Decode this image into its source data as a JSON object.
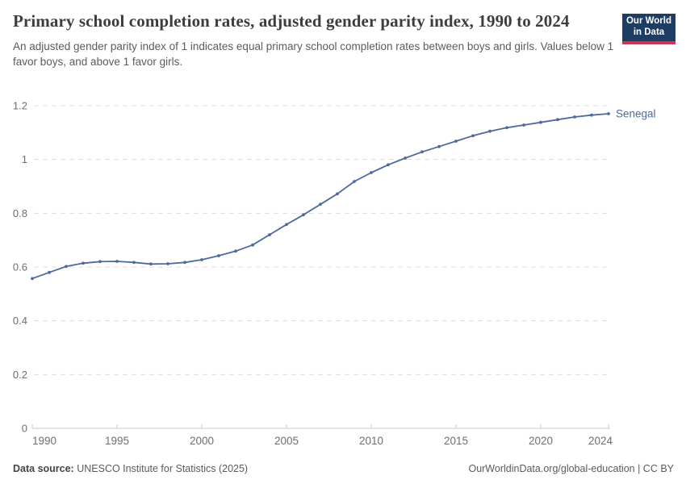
{
  "header": {
    "title": "Primary school completion rates, adjusted gender parity index, 1990 to 2024",
    "subtitle": "An adjusted gender parity index of 1 indicates equal primary school completion rates between boys and girls. Values below 1 favor boys, and above 1 favor girls.",
    "logo_line1": "Our World",
    "logo_line2": "in Data"
  },
  "chart_data": {
    "type": "line",
    "title": "Primary school completion rates, adjusted gender parity index, 1990 to 2024",
    "xlabel": "",
    "ylabel": "",
    "grid": "horizontal dashed",
    "legend": "end-of-line entity label",
    "xlim": [
      1990,
      2024
    ],
    "ylim": [
      0,
      1.2
    ],
    "yticks": [
      0,
      0.2,
      0.4,
      0.6,
      0.8,
      1,
      1.2
    ],
    "ytick_labels": [
      "0",
      "0.2",
      "0.4",
      "0.6",
      "0.8",
      "1",
      "1.2"
    ],
    "xticks": [
      1990,
      1995,
      2000,
      2005,
      2010,
      2015,
      2020,
      2024
    ],
    "xtick_labels": [
      "1990",
      "1995",
      "2000",
      "2005",
      "2010",
      "2015",
      "2020",
      "2024"
    ],
    "series": [
      {
        "name": "Senegal",
        "color": "#4C6A9C",
        "x": [
          1990,
          1991,
          1992,
          1993,
          1994,
          1995,
          1996,
          1997,
          1998,
          1999,
          2000,
          2001,
          2002,
          2003,
          2004,
          2005,
          2006,
          2007,
          2008,
          2009,
          2010,
          2011,
          2012,
          2013,
          2014,
          2015,
          2016,
          2017,
          2018,
          2019,
          2020,
          2021,
          2022,
          2023,
          2024
        ],
        "values": [
          0.557,
          0.58,
          0.602,
          0.614,
          0.62,
          0.621,
          0.617,
          0.611,
          0.612,
          0.617,
          0.627,
          0.642,
          0.659,
          0.682,
          0.72,
          0.758,
          0.794,
          0.833,
          0.872,
          0.918,
          0.951,
          0.98,
          1.005,
          1.028,
          1.048,
          1.068,
          1.088,
          1.105,
          1.118,
          1.128,
          1.138,
          1.148,
          1.158,
          1.165,
          1.17
        ]
      }
    ]
  },
  "footer": {
    "source_label": "Data source:",
    "source_value": "UNESCO Institute for Statistics (2025)",
    "url_license": "OurWorldinData.org/global-education | CC BY"
  },
  "colors": {
    "line": "#4C6A9C",
    "grid": "#dcdcdc",
    "axis": "#c8c8c8",
    "tick_text": "#6e6e6e",
    "title_text": "#3d3d3d",
    "subtitle_text": "#5b5b5b",
    "logo_bg": "#1d3d63",
    "logo_accent": "#cf3350"
  }
}
